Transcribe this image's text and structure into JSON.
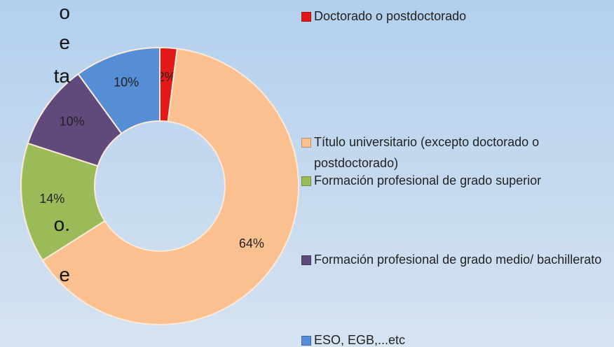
{
  "chart_data": {
    "type": "donut",
    "categories": [
      "Doctorado o  postdoctorado",
      "Título universitario (excepto doctorado o postdoctorado)",
      "Formación profesional de grado superior",
      "Formación profesional de grado medio/ bachillerato",
      "ESO, EGB,...etc"
    ],
    "values": [
      2,
      64,
      14,
      10,
      10
    ],
    "value_labels": [
      "2%",
      "64%",
      "14%",
      "10%",
      "10%"
    ],
    "colors": [
      "#e31818",
      "#fac08f",
      "#9bbb59",
      "#604a7b",
      "#558ed5"
    ],
    "legend": "right"
  },
  "fragments": [
    "o",
    "e",
    "ta",
    "o.",
    "e"
  ]
}
